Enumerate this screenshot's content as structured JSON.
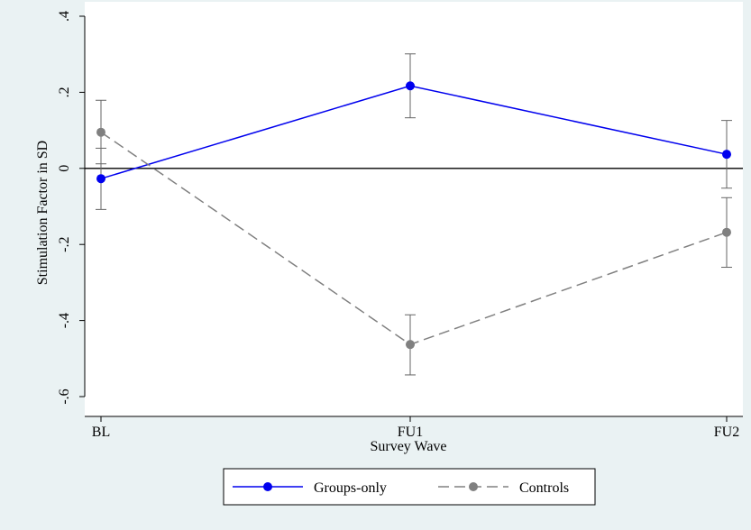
{
  "chart_data": {
    "type": "line",
    "title": "",
    "xlabel": "Survey Wave",
    "ylabel": "Stimulation Factor in SD",
    "categories": [
      "BL",
      "FU1",
      "FU2"
    ],
    "ylim": [
      -0.6,
      0.4
    ],
    "yticks": [
      0.4,
      0.2,
      0,
      -0.2,
      -0.4,
      -0.6
    ],
    "ytick_labels": [
      ".4",
      ".2",
      "0",
      "-.2",
      "-.4",
      "-.6"
    ],
    "reference_line_y": 0,
    "grid": false,
    "legend_position": "bottom",
    "series": [
      {
        "name": "Groups-only",
        "color": "#0000ee",
        "dash": "solid",
        "values": [
          -0.027,
          0.217,
          0.037
        ],
        "ci_low": [
          -0.108,
          0.133,
          -0.052
        ],
        "ci_high": [
          0.053,
          0.301,
          0.126
        ]
      },
      {
        "name": "Controls",
        "color": "#808080",
        "dash": "dashed",
        "values": [
          0.095,
          -0.463,
          -0.168
        ],
        "ci_low": [
          0.012,
          -0.543,
          -0.26
        ],
        "ci_high": [
          0.179,
          -0.385,
          -0.077
        ]
      }
    ]
  }
}
